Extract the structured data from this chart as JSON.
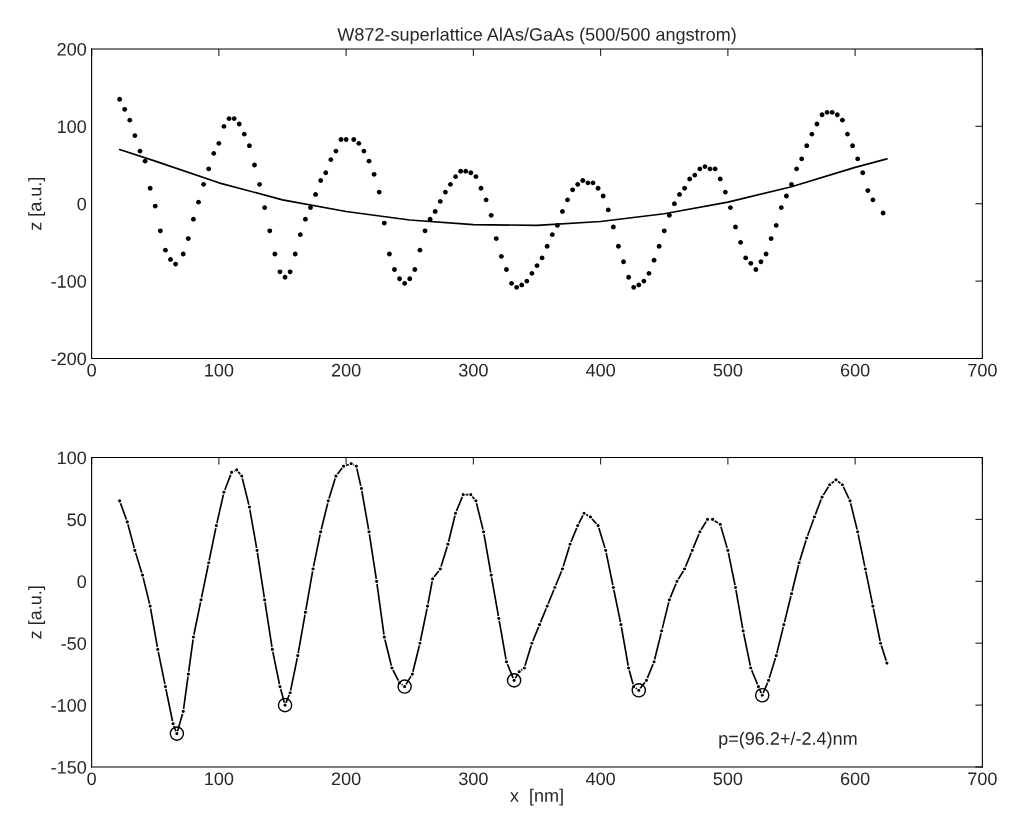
{
  "chart_data": [
    {
      "type": "scatter",
      "title": "W872-superlattice AlAs/GaAs (500/500 angstrom)",
      "ylabel": "z [a.u.]",
      "xlim": [
        0,
        700
      ],
      "xticks": [
        0,
        100,
        200,
        300,
        400,
        500,
        600,
        700
      ],
      "ylim": [
        -200,
        200
      ],
      "yticks": [
        -200,
        -100,
        0,
        100,
        200
      ],
      "grid": false,
      "legend": false,
      "series": [
        {
          "marker": "circle",
          "color": "#000000",
          "x": [
            22,
            26,
            30,
            34,
            38,
            42,
            46,
            50,
            54,
            58,
            62,
            66,
            72,
            76,
            80,
            84,
            88,
            92,
            96,
            100,
            104,
            108,
            112,
            116,
            120,
            124,
            128,
            132,
            136,
            140,
            144,
            148,
            152,
            156,
            160,
            164,
            168,
            172,
            176,
            180,
            184,
            188,
            192,
            196,
            200,
            206,
            210,
            214,
            218,
            222,
            226,
            230,
            234,
            238,
            242,
            246,
            250,
            254,
            258,
            262,
            266,
            270,
            274,
            278,
            282,
            286,
            290,
            294,
            298,
            302,
            306,
            310,
            314,
            318,
            322,
            326,
            330,
            334,
            338,
            342,
            346,
            350,
            354,
            358,
            362,
            366,
            370,
            374,
            378,
            382,
            386,
            390,
            394,
            398,
            402,
            406,
            410,
            414,
            418,
            422,
            426,
            430,
            434,
            438,
            442,
            446,
            450,
            454,
            458,
            462,
            466,
            470,
            474,
            478,
            482,
            486,
            490,
            494,
            498,
            502,
            506,
            510,
            514,
            518,
            522,
            526,
            530,
            534,
            538,
            542,
            546,
            550,
            554,
            558,
            562,
            566,
            570,
            574,
            578,
            582,
            586,
            590,
            594,
            598,
            602,
            606,
            610,
            614,
            622
          ],
          "values": [
            135,
            122,
            108,
            88,
            68,
            55,
            20,
            -3,
            -35,
            -60,
            -72,
            -78,
            -65,
            -45,
            -20,
            2,
            25,
            45,
            65,
            78,
            100,
            110,
            110,
            103,
            90,
            75,
            50,
            25,
            -5,
            -35,
            -65,
            -88,
            -95,
            -88,
            -65,
            -40,
            -20,
            -5,
            12,
            30,
            40,
            57,
            68,
            83,
            83,
            83,
            78,
            68,
            55,
            38,
            15,
            -25,
            -65,
            -85,
            -97,
            -103,
            -97,
            -85,
            -60,
            -35,
            -20,
            -10,
            3,
            15,
            25,
            35,
            42,
            42,
            40,
            35,
            20,
            5,
            -15,
            -45,
            -68,
            -85,
            -103,
            -108,
            -105,
            -100,
            -90,
            -80,
            -70,
            -55,
            -40,
            -28,
            -10,
            5,
            18,
            25,
            30,
            27,
            27,
            20,
            10,
            -8,
            -30,
            -55,
            -75,
            -95,
            -108,
            -105,
            -100,
            -90,
            -73,
            -55,
            -35,
            -15,
            0,
            12,
            20,
            32,
            37,
            45,
            48,
            45,
            45,
            32,
            15,
            -5,
            -30,
            -50,
            -70,
            -77,
            -85,
            -75,
            -65,
            -45,
            -28,
            -5,
            10,
            25,
            45,
            58,
            75,
            90,
            103,
            115,
            118,
            118,
            115,
            108,
            90,
            75,
            58,
            40,
            17,
            5,
            -12
          ]
        },
        {
          "type": "line",
          "marker": "none",
          "line_style": "solid",
          "color": "#000000",
          "x": [
            22,
            50,
            100,
            150,
            200,
            250,
            300,
            350,
            400,
            450,
            500,
            550,
            600,
            625
          ],
          "values": [
            70,
            55,
            27,
            5,
            -10,
            -21,
            -27,
            -28,
            -23,
            -13,
            2,
            22,
            47,
            58
          ]
        }
      ]
    },
    {
      "type": "line",
      "xlabel": "x  [nm]",
      "ylabel": "z [a.u.]",
      "xlim": [
        0,
        700
      ],
      "xticks": [
        0,
        100,
        200,
        300,
        400,
        500,
        600,
        700
      ],
      "ylim": [
        -150,
        100
      ],
      "yticks": [
        -150,
        -100,
        -50,
        0,
        50,
        100
      ],
      "grid": false,
      "legend": false,
      "annotations": [
        "p=(96.2+/-2.4)nm"
      ],
      "series": [
        {
          "marker": "circle",
          "line_style": "solid",
          "color": "#000000",
          "x": [
            22,
            28,
            34,
            40,
            46,
            52,
            58,
            64,
            67,
            72,
            76,
            80,
            86,
            92,
            98,
            104,
            110,
            114,
            118,
            124,
            130,
            136,
            142,
            148,
            152,
            156,
            162,
            168,
            174,
            180,
            186,
            192,
            198,
            204,
            208,
            212,
            218,
            224,
            230,
            236,
            242,
            246,
            252,
            258,
            264,
            268,
            274,
            280,
            286,
            292,
            298,
            302,
            308,
            314,
            320,
            326,
            332,
            336,
            340,
            346,
            352,
            358,
            364,
            370,
            376,
            382,
            387,
            392,
            398,
            404,
            410,
            416,
            422,
            426,
            430,
            436,
            442,
            448,
            454,
            460,
            466,
            472,
            478,
            484,
            488,
            494,
            500,
            506,
            512,
            518,
            524,
            527,
            532,
            538,
            544,
            550,
            556,
            562,
            568,
            574,
            580,
            585,
            590,
            596,
            602,
            608,
            614,
            620,
            625
          ],
          "values": [
            65,
            48,
            25,
            5,
            -20,
            -55,
            -85,
            -115,
            -123,
            -105,
            -75,
            -45,
            -15,
            15,
            45,
            72,
            88,
            90,
            85,
            60,
            25,
            -15,
            -55,
            -85,
            -100,
            -90,
            -60,
            -25,
            10,
            40,
            65,
            85,
            93,
            95,
            93,
            75,
            40,
            0,
            -45,
            -70,
            -82,
            -85,
            -75,
            -50,
            -20,
            2,
            10,
            30,
            55,
            70,
            70,
            65,
            40,
            5,
            -30,
            -65,
            -80,
            -73,
            -70,
            -50,
            -35,
            -20,
            -5,
            10,
            30,
            45,
            55,
            52,
            45,
            25,
            -5,
            -35,
            -70,
            -85,
            -88,
            -80,
            -65,
            -40,
            -15,
            0,
            10,
            25,
            40,
            50,
            50,
            46,
            25,
            -5,
            -40,
            -70,
            -85,
            -92,
            -80,
            -60,
            -35,
            -10,
            15,
            35,
            52,
            68,
            78,
            82,
            78,
            65,
            40,
            10,
            -20,
            -50,
            -66
          ]
        },
        {
          "type": "scatter",
          "marker": "circle",
          "color": "#000000",
          "x": [
            67,
            152,
            246,
            332,
            430,
            527
          ],
          "values": [
            -123,
            -100,
            -85,
            -80,
            -88,
            -92
          ]
        }
      ]
    }
  ]
}
